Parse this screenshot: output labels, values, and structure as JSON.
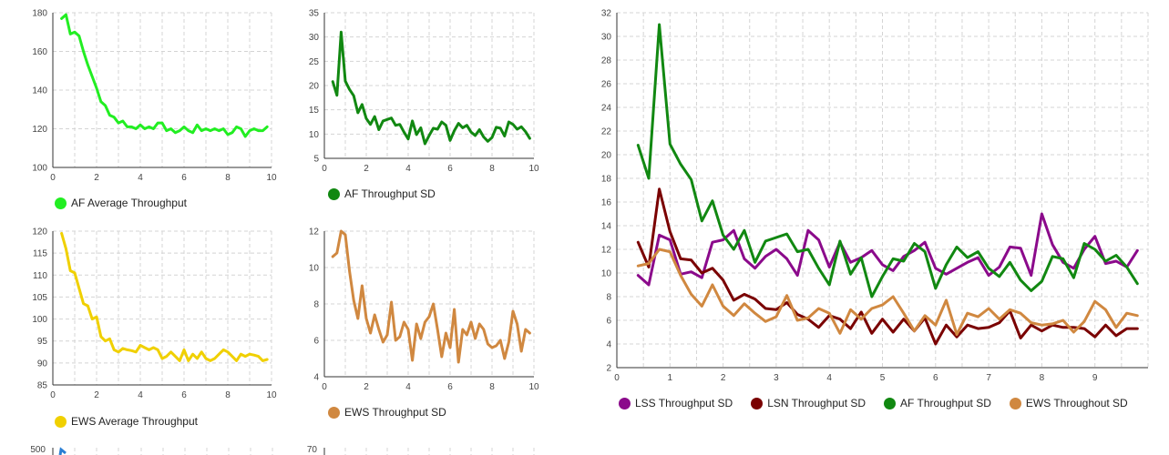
{
  "chart_data": [
    {
      "id": "af-avg",
      "type": "line",
      "xlim": [
        0,
        10
      ],
      "xticks": [
        0,
        2,
        4,
        6,
        8,
        10
      ],
      "ylim": [
        100,
        180
      ],
      "yticks": [
        100,
        120,
        140,
        160,
        180
      ],
      "x_grid": [
        0,
        1,
        2,
        3,
        4,
        5,
        6,
        7,
        8,
        9,
        10
      ],
      "series": [
        {
          "name": "AF Average Throughput",
          "color": "#22ee22",
          "x": [
            0.4,
            0.6,
            0.8,
            1.0,
            1.2,
            1.4,
            1.6,
            1.8,
            2.0,
            2.2,
            2.4,
            2.6,
            2.8,
            3.0,
            3.2,
            3.4,
            3.6,
            3.8,
            4.0,
            4.2,
            4.4,
            4.6,
            4.8,
            5.0,
            5.2,
            5.4,
            5.6,
            5.8,
            6.0,
            6.2,
            6.4,
            6.6,
            6.8,
            7.0,
            7.2,
            7.4,
            7.6,
            7.8,
            8.0,
            8.2,
            8.4,
            8.6,
            8.8,
            9.0,
            9.2,
            9.4,
            9.6,
            9.8
          ],
          "y": [
            177,
            179,
            169,
            170,
            168,
            160,
            153,
            147,
            141,
            134,
            132,
            127,
            126,
            123,
            124,
            121,
            121,
            120,
            122,
            120,
            121,
            120,
            123,
            123,
            119,
            120,
            118,
            119,
            121,
            119,
            118,
            122,
            119,
            120,
            119,
            120,
            119,
            120,
            117,
            118,
            121,
            120,
            116,
            119,
            120,
            119,
            119,
            121
          ]
        }
      ]
    },
    {
      "id": "af-sd",
      "type": "line",
      "xlim": [
        0,
        10
      ],
      "xticks": [
        0,
        2,
        4,
        6,
        8,
        10
      ],
      "ylim": [
        5,
        35
      ],
      "yticks": [
        5,
        10,
        15,
        20,
        25,
        30,
        35
      ],
      "x_grid": [
        0,
        1,
        2,
        3,
        4,
        5,
        6,
        7,
        8,
        9,
        10
      ],
      "series": [
        {
          "name": "AF Throughput SD",
          "color": "#118811",
          "x": [
            0.4,
            0.6,
            0.8,
            1.0,
            1.2,
            1.4,
            1.6,
            1.8,
            2.0,
            2.2,
            2.4,
            2.6,
            2.8,
            3.0,
            3.2,
            3.4,
            3.6,
            3.8,
            4.0,
            4.2,
            4.4,
            4.6,
            4.8,
            5.0,
            5.2,
            5.4,
            5.6,
            5.8,
            6.0,
            6.2,
            6.4,
            6.6,
            6.8,
            7.0,
            7.2,
            7.4,
            7.6,
            7.8,
            8.0,
            8.2,
            8.4,
            8.6,
            8.8,
            9.0,
            9.2,
            9.4,
            9.6,
            9.8
          ],
          "y": [
            20.8,
            18,
            31,
            20.9,
            19.2,
            17.9,
            14.4,
            16.1,
            13.2,
            12,
            13.6,
            10.9,
            12.7,
            13,
            13.3,
            11.8,
            12,
            10.4,
            9,
            12.7,
            9.9,
            11.3,
            8,
            9.7,
            11.2,
            11,
            12.5,
            11.8,
            8.7,
            10.7,
            12.2,
            11.3,
            11.8,
            10.4,
            9.7,
            10.9,
            9.4,
            8.5,
            9.3,
            11.4,
            11.2,
            9.6,
            12.5,
            12,
            11,
            11.5,
            10.5,
            9.1
          ]
        }
      ]
    },
    {
      "id": "ews-avg",
      "type": "line",
      "xlim": [
        0,
        10
      ],
      "xticks": [
        0,
        2,
        4,
        6,
        8,
        10
      ],
      "ylim": [
        85,
        120
      ],
      "yticks": [
        85,
        90,
        95,
        100,
        105,
        110,
        115,
        120
      ],
      "x_grid": [
        0,
        1,
        2,
        3,
        4,
        5,
        6,
        7,
        8,
        9,
        10
      ],
      "series": [
        {
          "name": "EWS Average Throughput",
          "color": "#f0d000",
          "x": [
            0.4,
            0.6,
            0.8,
            1.0,
            1.2,
            1.4,
            1.6,
            1.8,
            2.0,
            2.2,
            2.4,
            2.6,
            2.8,
            3.0,
            3.2,
            3.4,
            3.6,
            3.8,
            4.0,
            4.2,
            4.4,
            4.6,
            4.8,
            5.0,
            5.2,
            5.4,
            5.6,
            5.8,
            6.0,
            6.2,
            6.4,
            6.6,
            6.8,
            7.0,
            7.2,
            7.4,
            7.6,
            7.8,
            8.0,
            8.2,
            8.4,
            8.6,
            8.8,
            9.0,
            9.2,
            9.4,
            9.6,
            9.8
          ],
          "y": [
            119.5,
            116,
            111,
            110.5,
            107,
            103.5,
            103,
            100,
            100.5,
            96,
            95,
            95.5,
            93,
            92.5,
            93.3,
            93,
            92.8,
            92.5,
            94,
            93.5,
            93,
            93.5,
            93,
            91,
            91.5,
            92.5,
            91.5,
            90.5,
            93,
            90.5,
            92,
            91,
            92.5,
            91,
            90.5,
            91,
            92,
            93,
            92.5,
            91.5,
            90.5,
            92,
            91.5,
            92,
            91.8,
            91.5,
            90.5,
            90.8
          ]
        }
      ]
    },
    {
      "id": "ews-sd",
      "type": "line",
      "xlim": [
        0,
        10
      ],
      "xticks": [
        0,
        2,
        4,
        6,
        8,
        10
      ],
      "ylim": [
        4,
        12
      ],
      "yticks": [
        4,
        6,
        8,
        10,
        12
      ],
      "x_grid": [
        0,
        1,
        2,
        3,
        4,
        5,
        6,
        7,
        8,
        9,
        10
      ],
      "series": [
        {
          "name": "EWS Throughput SD",
          "color": "#d08840",
          "x": [
            0.4,
            0.6,
            0.8,
            1.0,
            1.2,
            1.4,
            1.6,
            1.8,
            2.0,
            2.2,
            2.4,
            2.6,
            2.8,
            3.0,
            3.2,
            3.4,
            3.6,
            3.8,
            4.0,
            4.2,
            4.4,
            4.6,
            4.8,
            5.0,
            5.2,
            5.4,
            5.6,
            5.8,
            6.0,
            6.2,
            6.4,
            6.6,
            6.8,
            7.0,
            7.2,
            7.4,
            7.6,
            7.8,
            8.0,
            8.2,
            8.4,
            8.6,
            8.8,
            9.0,
            9.2,
            9.4,
            9.6,
            9.8
          ],
          "y": [
            10.6,
            10.8,
            12,
            11.8,
            9.8,
            8.2,
            7.2,
            9,
            7.2,
            6.4,
            7.4,
            6.6,
            5.9,
            6.3,
            8.1,
            6,
            6.2,
            7,
            6.6,
            4.9,
            6.9,
            6.1,
            7,
            7.3,
            8,
            6.6,
            5.1,
            6.4,
            5.6,
            7.7,
            4.8,
            6.6,
            6.3,
            7,
            6.1,
            6.9,
            6.6,
            5.8,
            5.6,
            5.7,
            6,
            5,
            5.9,
            7.6,
            6.9,
            5.4,
            6.6,
            6.4
          ]
        }
      ]
    },
    {
      "id": "combined-sd",
      "type": "line",
      "xlim": [
        0,
        10
      ],
      "xticks": [
        0,
        1,
        2,
        3,
        4,
        5,
        6,
        7,
        8,
        9
      ],
      "ylim": [
        2,
        32
      ],
      "yticks": [
        2,
        4,
        6,
        8,
        10,
        12,
        14,
        16,
        18,
        20,
        22,
        24,
        26,
        28,
        30,
        32
      ],
      "x_grid": [
        0,
        0.5,
        1,
        1.5,
        2,
        2.5,
        3,
        3.5,
        4,
        4.5,
        5,
        5.5,
        6,
        6.5,
        7,
        7.5,
        8,
        8.5,
        9,
        9.5,
        10
      ],
      "series": [
        {
          "name": "LSS Throughput SD",
          "color": "#8b0a8b",
          "x": [
            0.4,
            0.6,
            0.8,
            1.0,
            1.2,
            1.4,
            1.6,
            1.8,
            2.0,
            2.2,
            2.4,
            2.6,
            2.8,
            3.0,
            3.2,
            3.4,
            3.6,
            3.8,
            4.0,
            4.2,
            4.4,
            4.6,
            4.8,
            5.0,
            5.2,
            5.4,
            5.6,
            5.8,
            6.0,
            6.2,
            6.4,
            6.6,
            6.8,
            7.0,
            7.2,
            7.4,
            7.6,
            7.8,
            8.0,
            8.2,
            8.4,
            8.6,
            8.8,
            9.0,
            9.2,
            9.4,
            9.6,
            9.8
          ],
          "y": [
            9.8,
            9,
            13.2,
            12.8,
            9.9,
            10.1,
            9.6,
            12.6,
            12.8,
            13.6,
            11.2,
            10.4,
            11.4,
            12,
            11.2,
            9.8,
            13.6,
            12.8,
            10.5,
            12.6,
            10.9,
            11.3,
            11.9,
            10.7,
            10.2,
            11.4,
            11.9,
            12.6,
            10.4,
            9.9,
            10.4,
            10.9,
            11.3,
            9.8,
            10.5,
            12.2,
            12.1,
            9.8,
            15,
            12.4,
            10.9,
            10.4,
            12,
            13.1,
            10.8,
            11,
            10.5,
            11.9
          ]
        },
        {
          "name": "LSN Throughput SD",
          "color": "#7a0000",
          "x": [
            0.4,
            0.6,
            0.8,
            1.0,
            1.2,
            1.4,
            1.6,
            1.8,
            2.0,
            2.2,
            2.4,
            2.6,
            2.8,
            3.0,
            3.2,
            3.4,
            3.6,
            3.8,
            4.0,
            4.2,
            4.4,
            4.6,
            4.8,
            5.0,
            5.2,
            5.4,
            5.6,
            5.8,
            6.0,
            6.2,
            6.4,
            6.6,
            6.8,
            7.0,
            7.2,
            7.4,
            7.6,
            7.8,
            8.0,
            8.2,
            8.4,
            8.6,
            8.8,
            9.0,
            9.2,
            9.4,
            9.6,
            9.8
          ],
          "y": [
            12.6,
            10.5,
            17.1,
            13.5,
            11.2,
            11.1,
            10,
            10.4,
            9.4,
            7.7,
            8.2,
            7.8,
            7,
            6.9,
            7.5,
            6.5,
            6.1,
            5.4,
            6.4,
            6.1,
            5.3,
            6.7,
            4.9,
            6.1,
            5,
            6.1,
            5.1,
            6.2,
            4,
            5.6,
            4.6,
            5.6,
            5.3,
            5.4,
            5.8,
            6.8,
            4.5,
            5.6,
            5.1,
            5.6,
            5.4,
            5.4,
            5.3,
            4.6,
            5.6,
            4.7,
            5.3,
            5.3
          ]
        },
        {
          "name": "AF Throughput SD",
          "color": "#118811",
          "x": [
            0.4,
            0.6,
            0.8,
            1.0,
            1.2,
            1.4,
            1.6,
            1.8,
            2.0,
            2.2,
            2.4,
            2.6,
            2.8,
            3.0,
            3.2,
            3.4,
            3.6,
            3.8,
            4.0,
            4.2,
            4.4,
            4.6,
            4.8,
            5.0,
            5.2,
            5.4,
            5.6,
            5.8,
            6.0,
            6.2,
            6.4,
            6.6,
            6.8,
            7.0,
            7.2,
            7.4,
            7.6,
            7.8,
            8.0,
            8.2,
            8.4,
            8.6,
            8.8,
            9.0,
            9.2,
            9.4,
            9.6,
            9.8
          ],
          "y": [
            20.8,
            18,
            31,
            20.9,
            19.2,
            17.9,
            14.4,
            16.1,
            13.2,
            12,
            13.6,
            10.9,
            12.7,
            13,
            13.3,
            11.8,
            12,
            10.4,
            9,
            12.7,
            9.9,
            11.3,
            8,
            9.7,
            11.2,
            11,
            12.5,
            11.8,
            8.7,
            10.7,
            12.2,
            11.3,
            11.8,
            10.4,
            9.7,
            10.9,
            9.4,
            8.5,
            9.3,
            11.4,
            11.2,
            9.6,
            12.5,
            12,
            11,
            11.5,
            10.5,
            9.1
          ]
        },
        {
          "name": "EWS Throughout SD",
          "color": "#d08840",
          "x": [
            0.4,
            0.6,
            0.8,
            1.0,
            1.2,
            1.4,
            1.6,
            1.8,
            2.0,
            2.2,
            2.4,
            2.6,
            2.8,
            3.0,
            3.2,
            3.4,
            3.6,
            3.8,
            4.0,
            4.2,
            4.4,
            4.6,
            4.8,
            5.0,
            5.2,
            5.4,
            5.6,
            5.8,
            6.0,
            6.2,
            6.4,
            6.6,
            6.8,
            7.0,
            7.2,
            7.4,
            7.6,
            7.8,
            8.0,
            8.2,
            8.4,
            8.6,
            8.8,
            9.0,
            9.2,
            9.4,
            9.6,
            9.8
          ],
          "y": [
            10.6,
            10.8,
            12,
            11.8,
            9.8,
            8.2,
            7.2,
            9,
            7.2,
            6.4,
            7.4,
            6.6,
            5.9,
            6.3,
            8.1,
            6,
            6.2,
            7,
            6.6,
            4.9,
            6.9,
            6.1,
            7,
            7.3,
            8,
            6.6,
            5.1,
            6.4,
            5.6,
            7.7,
            4.8,
            6.6,
            6.3,
            7,
            6.1,
            6.9,
            6.6,
            5.8,
            5.6,
            5.7,
            6,
            5,
            5.9,
            7.6,
            6.9,
            5.4,
            6.6,
            6.4
          ]
        }
      ]
    },
    {
      "id": "partial-left",
      "type": "line",
      "ylim_top_label": "500",
      "series": [
        {
          "color": "#2a7fd4"
        }
      ]
    },
    {
      "id": "partial-mid",
      "type": "line",
      "ylim_top_label": "70",
      "series": []
    }
  ]
}
